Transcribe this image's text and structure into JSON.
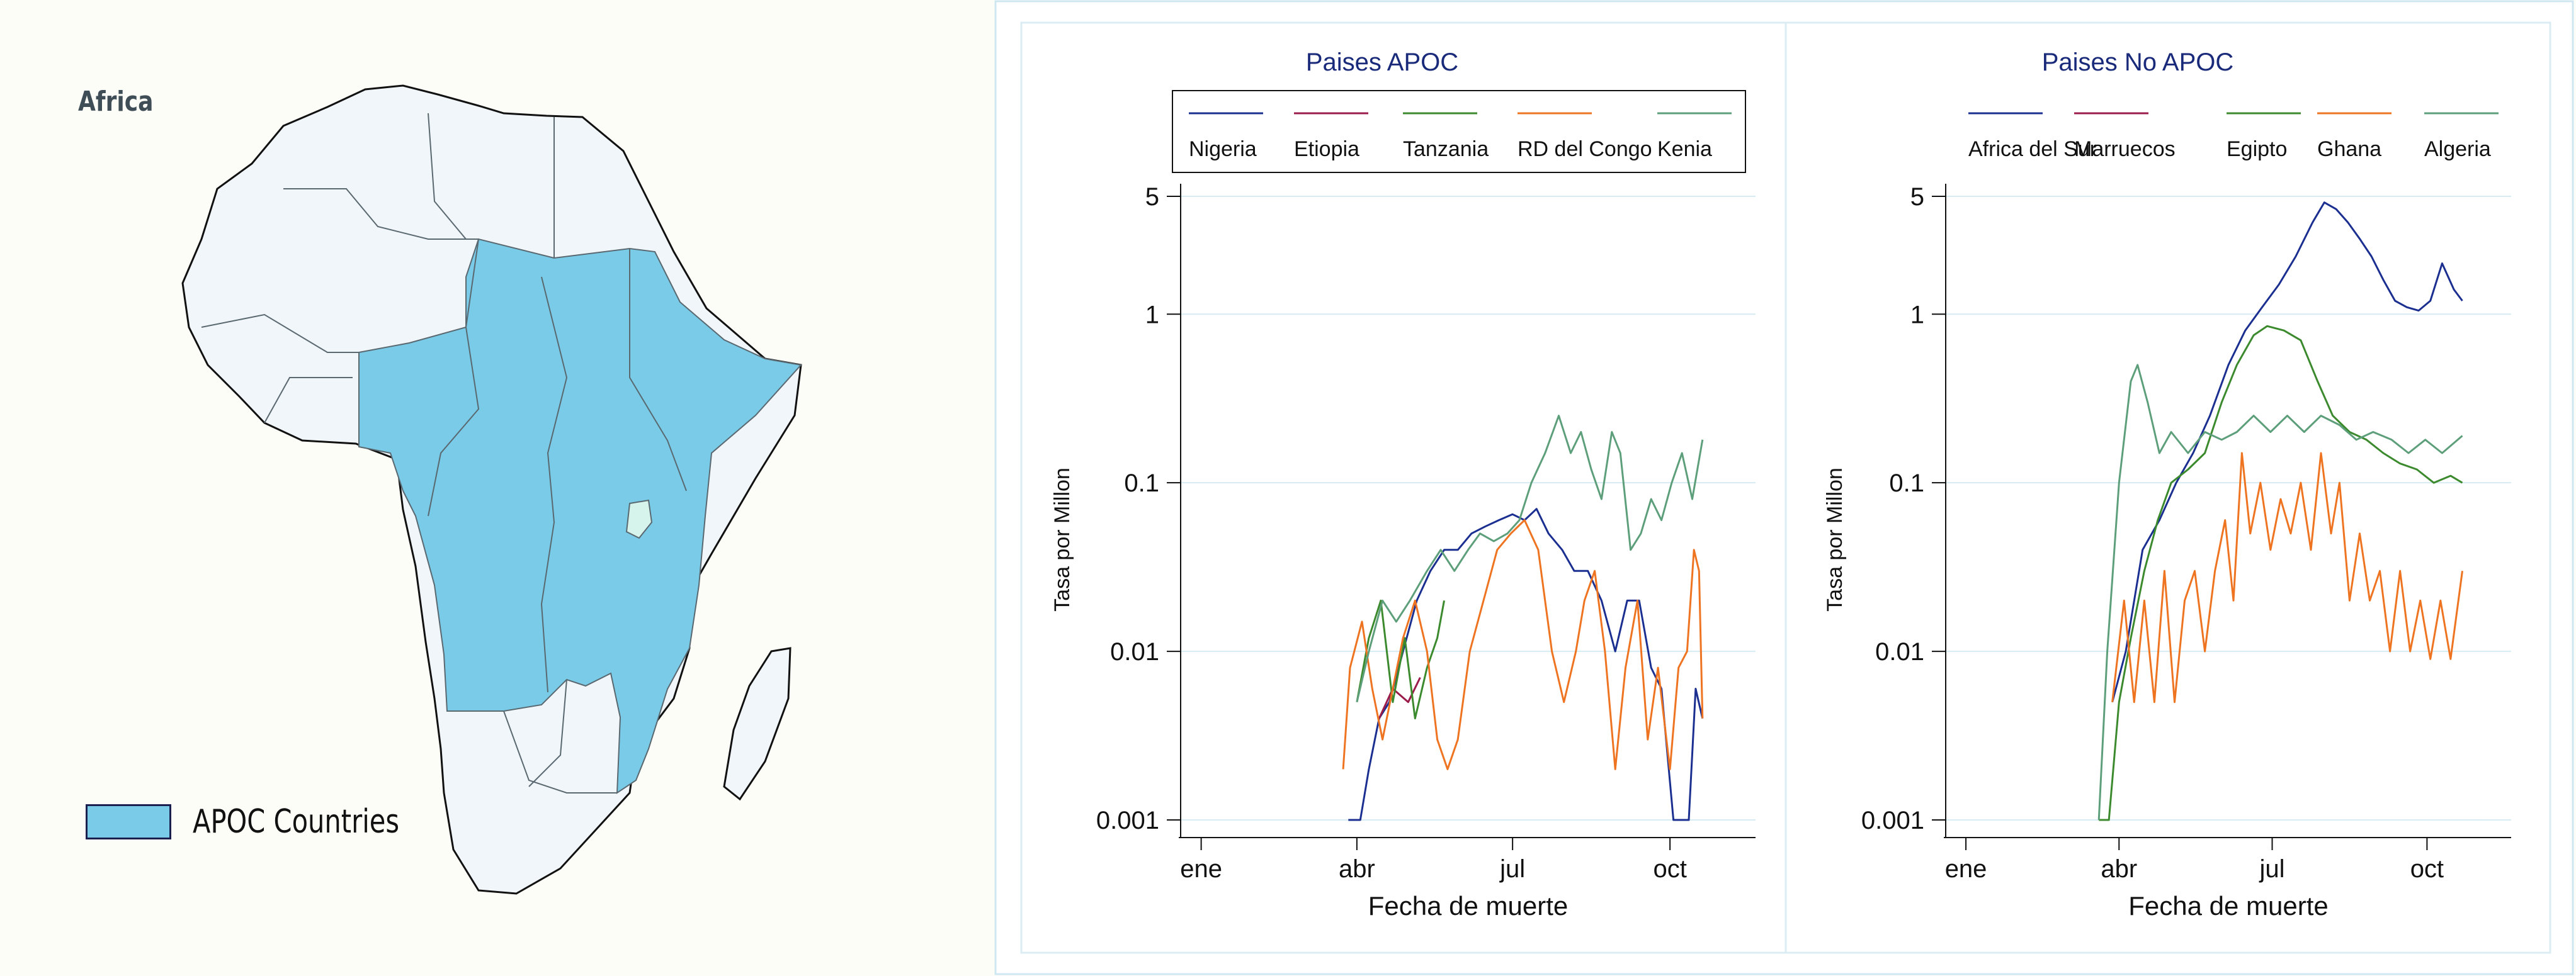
{
  "map": {
    "title": "Africa",
    "legend_label": "APOC Countries",
    "colors": {
      "apoc": "#79cbe8",
      "other": "#f1f6fa",
      "lake": "#d6f4ec",
      "border": "#5a6870",
      "coast": "#111111"
    }
  },
  "chart_data": [
    {
      "type": "line",
      "title": "Paises APOC",
      "xlabel": "Fecha de muerte",
      "ylabel": "Tasa por Millon",
      "y_scale": "log",
      "ylim": [
        0.001,
        5
      ],
      "yticks": [
        0.001,
        0.01,
        0.1,
        1,
        5
      ],
      "ytick_labels": [
        "0.001",
        "0.01",
        "0.1",
        "1",
        "5"
      ],
      "x_ticks": [
        "ene",
        "abr",
        "jul",
        "oct"
      ],
      "x_tick_dates": [
        "2020-01-01",
        "2020-04-01",
        "2020-07-01",
        "2020-10-01"
      ],
      "xlim": [
        "2019-12-20",
        "2020-11-20"
      ],
      "grid": "horizontal",
      "legend": "top boxed",
      "series": [
        {
          "name": "Nigeria",
          "color": "#1b2f91",
          "points": [
            [
              "2020-03-27",
              0.001
            ],
            [
              "2020-04-03",
              0.001
            ],
            [
              "2020-04-08",
              0.002
            ],
            [
              "2020-04-14",
              0.004
            ],
            [
              "2020-04-20",
              0.005
            ],
            [
              "2020-04-28",
              0.01
            ],
            [
              "2020-05-06",
              0.02
            ],
            [
              "2020-05-14",
              0.03
            ],
            [
              "2020-05-22",
              0.04
            ],
            [
              "2020-05-30",
              0.04
            ],
            [
              "2020-06-07",
              0.05
            ],
            [
              "2020-06-15",
              0.055
            ],
            [
              "2020-06-23",
              0.06
            ],
            [
              "2020-07-01",
              0.065
            ],
            [
              "2020-07-08",
              0.06
            ],
            [
              "2020-07-15",
              0.07
            ],
            [
              "2020-07-22",
              0.05
            ],
            [
              "2020-07-30",
              0.04
            ],
            [
              "2020-08-06",
              0.03
            ],
            [
              "2020-08-14",
              0.03
            ],
            [
              "2020-08-22",
              0.02
            ],
            [
              "2020-08-30",
              0.01
            ],
            [
              "2020-09-06",
              0.02
            ],
            [
              "2020-09-13",
              0.02
            ],
            [
              "2020-09-20",
              0.008
            ],
            [
              "2020-09-26",
              0.006
            ],
            [
              "2020-10-03",
              0.001
            ],
            [
              "2020-10-12",
              0.001
            ],
            [
              "2020-10-16",
              0.006
            ],
            [
              "2020-10-20",
              0.004
            ]
          ]
        },
        {
          "name": "Etiopia",
          "color": "#9b1b4a",
          "points": [
            [
              "2020-04-14",
              0.004
            ],
            [
              "2020-04-22",
              0.006
            ],
            [
              "2020-05-01",
              0.005
            ],
            [
              "2020-05-08",
              0.007
            ]
          ]
        },
        {
          "name": "Tanzania",
          "color": "#3c8a2e",
          "points": [
            [
              "2020-04-01",
              0.005
            ],
            [
              "2020-04-08",
              0.012
            ],
            [
              "2020-04-15",
              0.02
            ],
            [
              "2020-04-22",
              0.005
            ],
            [
              "2020-04-29",
              0.012
            ],
            [
              "2020-05-05",
              0.004
            ],
            [
              "2020-05-12",
              0.008
            ],
            [
              "2020-05-18",
              0.012
            ],
            [
              "2020-05-22",
              0.02
            ]
          ]
        },
        {
          "name": "RD del Congo",
          "color": "#ee7421",
          "points": [
            [
              "2020-03-24",
              0.002
            ],
            [
              "2020-03-28",
              0.008
            ],
            [
              "2020-04-04",
              0.015
            ],
            [
              "2020-04-10",
              0.006
            ],
            [
              "2020-04-16",
              0.003
            ],
            [
              "2020-04-22",
              0.006
            ],
            [
              "2020-04-28",
              0.012
            ],
            [
              "2020-05-05",
              0.02
            ],
            [
              "2020-05-12",
              0.01
            ],
            [
              "2020-05-18",
              0.003
            ],
            [
              "2020-05-24",
              0.002
            ],
            [
              "2020-05-30",
              0.003
            ],
            [
              "2020-06-06",
              0.01
            ],
            [
              "2020-06-14",
              0.02
            ],
            [
              "2020-06-22",
              0.04
            ],
            [
              "2020-06-30",
              0.05
            ],
            [
              "2020-07-08",
              0.06
            ],
            [
              "2020-07-16",
              0.04
            ],
            [
              "2020-07-24",
              0.01
            ],
            [
              "2020-07-31",
              0.005
            ],
            [
              "2020-08-07",
              0.01
            ],
            [
              "2020-08-12",
              0.02
            ],
            [
              "2020-08-18",
              0.03
            ],
            [
              "2020-08-24",
              0.01
            ],
            [
              "2020-08-30",
              0.002
            ],
            [
              "2020-09-05",
              0.008
            ],
            [
              "2020-09-12",
              0.02
            ],
            [
              "2020-09-18",
              0.003
            ],
            [
              "2020-09-24",
              0.008
            ],
            [
              "2020-10-01",
              0.002
            ],
            [
              "2020-10-06",
              0.008
            ],
            [
              "2020-10-11",
              0.01
            ],
            [
              "2020-10-15",
              0.04
            ],
            [
              "2020-10-18",
              0.03
            ],
            [
              "2020-10-20",
              0.004
            ]
          ]
        },
        {
          "name": "Kenia",
          "color": "#5e9f7b",
          "points": [
            [
              "2020-04-01",
              0.005
            ],
            [
              "2020-04-08",
              0.01
            ],
            [
              "2020-04-16",
              0.02
            ],
            [
              "2020-04-24",
              0.015
            ],
            [
              "2020-05-02",
              0.02
            ],
            [
              "2020-05-12",
              0.03
            ],
            [
              "2020-05-20",
              0.04
            ],
            [
              "2020-05-28",
              0.03
            ],
            [
              "2020-06-05",
              0.04
            ],
            [
              "2020-06-12",
              0.05
            ],
            [
              "2020-06-20",
              0.045
            ],
            [
              "2020-06-28",
              0.05
            ],
            [
              "2020-07-05",
              0.06
            ],
            [
              "2020-07-12",
              0.1
            ],
            [
              "2020-07-20",
              0.15
            ],
            [
              "2020-07-28",
              0.25
            ],
            [
              "2020-08-04",
              0.15
            ],
            [
              "2020-08-10",
              0.2
            ],
            [
              "2020-08-16",
              0.12
            ],
            [
              "2020-08-22",
              0.08
            ],
            [
              "2020-08-28",
              0.2
            ],
            [
              "2020-09-02",
              0.15
            ],
            [
              "2020-09-08",
              0.04
            ],
            [
              "2020-09-14",
              0.05
            ],
            [
              "2020-09-20",
              0.08
            ],
            [
              "2020-09-26",
              0.06
            ],
            [
              "2020-10-02",
              0.1
            ],
            [
              "2020-10-08",
              0.15
            ],
            [
              "2020-10-14",
              0.08
            ],
            [
              "2020-10-20",
              0.18
            ]
          ]
        }
      ]
    },
    {
      "type": "line",
      "title": "Paises No APOC",
      "xlabel": "Fecha de muerte",
      "ylabel": "Tasa por Millon",
      "y_scale": "log",
      "ylim": [
        0.001,
        5
      ],
      "yticks": [
        0.001,
        0.01,
        0.1,
        1,
        5
      ],
      "ytick_labels": [
        "0.001",
        "0.01",
        "0.1",
        "1",
        "5"
      ],
      "x_ticks": [
        "ene",
        "abr",
        "jul",
        "oct"
      ],
      "x_tick_dates": [
        "2020-01-01",
        "2020-04-01",
        "2020-07-01",
        "2020-10-01"
      ],
      "xlim": [
        "2019-12-20",
        "2020-11-20"
      ],
      "grid": "horizontal",
      "legend": "top",
      "series": [
        {
          "name": "Africa del Sur",
          "color": "#1b2f91",
          "points": [
            [
              "2020-03-28",
              0.005
            ],
            [
              "2020-04-05",
              0.01
            ],
            [
              "2020-04-15",
              0.04
            ],
            [
              "2020-04-25",
              0.06
            ],
            [
              "2020-05-05",
              0.1
            ],
            [
              "2020-05-15",
              0.15
            ],
            [
              "2020-05-25",
              0.25
            ],
            [
              "2020-06-05",
              0.5
            ],
            [
              "2020-06-15",
              0.8
            ],
            [
              "2020-06-25",
              1.1
            ],
            [
              "2020-07-05",
              1.5
            ],
            [
              "2020-07-15",
              2.2
            ],
            [
              "2020-07-25",
              3.5
            ],
            [
              "2020-08-01",
              4.6
            ],
            [
              "2020-08-08",
              4.2
            ],
            [
              "2020-08-15",
              3.5
            ],
            [
              "2020-08-22",
              2.8
            ],
            [
              "2020-08-29",
              2.2
            ],
            [
              "2020-09-05",
              1.6
            ],
            [
              "2020-09-12",
              1.2
            ],
            [
              "2020-09-19",
              1.1
            ],
            [
              "2020-09-26",
              1.05
            ],
            [
              "2020-10-03",
              1.2
            ],
            [
              "2020-10-10",
              2.0
            ],
            [
              "2020-10-17",
              1.4
            ],
            [
              "2020-10-22",
              1.2
            ]
          ]
        },
        {
          "name": "Marruecos",
          "color": "#9b1b4a",
          "points": []
        },
        {
          "name": "Egipto",
          "color": "#3c8a2e",
          "points": [
            [
              "2020-03-20",
              0.001
            ],
            [
              "2020-03-26",
              0.001
            ],
            [
              "2020-04-01",
              0.005
            ],
            [
              "2020-04-08",
              0.012
            ],
            [
              "2020-04-16",
              0.03
            ],
            [
              "2020-04-24",
              0.06
            ],
            [
              "2020-05-02",
              0.1
            ],
            [
              "2020-05-12",
              0.12
            ],
            [
              "2020-05-22",
              0.15
            ],
            [
              "2020-06-01",
              0.3
            ],
            [
              "2020-06-10",
              0.5
            ],
            [
              "2020-06-20",
              0.75
            ],
            [
              "2020-06-28",
              0.85
            ],
            [
              "2020-07-08",
              0.8
            ],
            [
              "2020-07-18",
              0.7
            ],
            [
              "2020-07-28",
              0.4
            ],
            [
              "2020-08-06",
              0.25
            ],
            [
              "2020-08-16",
              0.2
            ],
            [
              "2020-08-26",
              0.18
            ],
            [
              "2020-09-05",
              0.15
            ],
            [
              "2020-09-15",
              0.13
            ],
            [
              "2020-09-25",
              0.12
            ],
            [
              "2020-10-05",
              0.1
            ],
            [
              "2020-10-15",
              0.11
            ],
            [
              "2020-10-22",
              0.1
            ]
          ]
        },
        {
          "name": "Ghana",
          "color": "#ee7421",
          "points": [
            [
              "2020-03-28",
              0.005
            ],
            [
              "2020-04-04",
              0.02
            ],
            [
              "2020-04-10",
              0.005
            ],
            [
              "2020-04-16",
              0.02
            ],
            [
              "2020-04-22",
              0.005
            ],
            [
              "2020-04-28",
              0.03
            ],
            [
              "2020-05-04",
              0.005
            ],
            [
              "2020-05-10",
              0.02
            ],
            [
              "2020-05-16",
              0.03
            ],
            [
              "2020-05-22",
              0.01
            ],
            [
              "2020-05-28",
              0.03
            ],
            [
              "2020-06-03",
              0.06
            ],
            [
              "2020-06-08",
              0.02
            ],
            [
              "2020-06-13",
              0.15
            ],
            [
              "2020-06-18",
              0.05
            ],
            [
              "2020-06-24",
              0.1
            ],
            [
              "2020-06-30",
              0.04
            ],
            [
              "2020-07-06",
              0.08
            ],
            [
              "2020-07-12",
              0.05
            ],
            [
              "2020-07-18",
              0.1
            ],
            [
              "2020-07-24",
              0.04
            ],
            [
              "2020-07-30",
              0.15
            ],
            [
              "2020-08-05",
              0.05
            ],
            [
              "2020-08-10",
              0.1
            ],
            [
              "2020-08-16",
              0.02
            ],
            [
              "2020-08-22",
              0.05
            ],
            [
              "2020-08-28",
              0.02
            ],
            [
              "2020-09-03",
              0.03
            ],
            [
              "2020-09-09",
              0.01
            ],
            [
              "2020-09-15",
              0.03
            ],
            [
              "2020-09-21",
              0.01
            ],
            [
              "2020-09-27",
              0.02
            ],
            [
              "2020-10-03",
              0.009
            ],
            [
              "2020-10-09",
              0.02
            ],
            [
              "2020-10-15",
              0.009
            ],
            [
              "2020-10-22",
              0.03
            ]
          ]
        },
        {
          "name": "Algeria",
          "color": "#5e9f7b",
          "points": [
            [
              "2020-03-20",
              0.001
            ],
            [
              "2020-03-25",
              0.01
            ],
            [
              "2020-04-01",
              0.1
            ],
            [
              "2020-04-08",
              0.4
            ],
            [
              "2020-04-12",
              0.5
            ],
            [
              "2020-04-18",
              0.3
            ],
            [
              "2020-04-25",
              0.15
            ],
            [
              "2020-05-02",
              0.2
            ],
            [
              "2020-05-12",
              0.15
            ],
            [
              "2020-05-22",
              0.2
            ],
            [
              "2020-06-01",
              0.18
            ],
            [
              "2020-06-10",
              0.2
            ],
            [
              "2020-06-20",
              0.25
            ],
            [
              "2020-06-30",
              0.2
            ],
            [
              "2020-07-10",
              0.25
            ],
            [
              "2020-07-20",
              0.2
            ],
            [
              "2020-07-30",
              0.25
            ],
            [
              "2020-08-10",
              0.22
            ],
            [
              "2020-08-20",
              0.18
            ],
            [
              "2020-08-30",
              0.2
            ],
            [
              "2020-09-10",
              0.18
            ],
            [
              "2020-09-20",
              0.15
            ],
            [
              "2020-09-30",
              0.18
            ],
            [
              "2020-10-10",
              0.15
            ],
            [
              "2020-10-22",
              0.19
            ]
          ]
        }
      ]
    }
  ]
}
